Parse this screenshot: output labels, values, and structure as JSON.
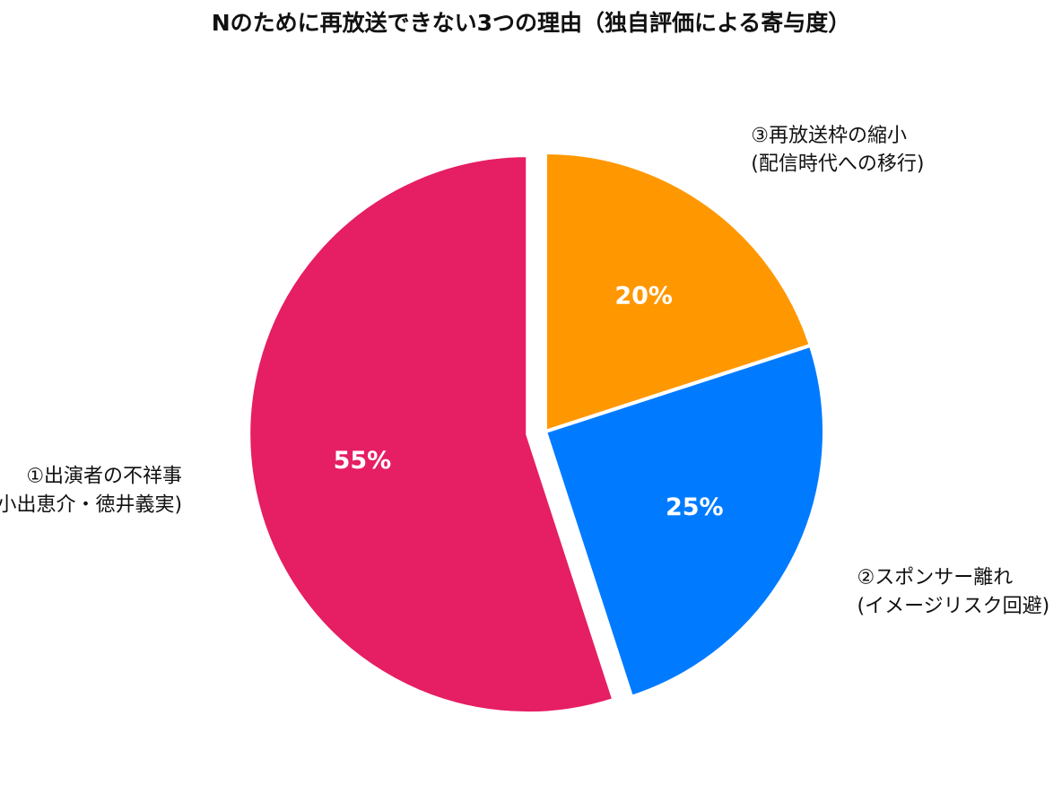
{
  "chart_data": {
    "type": "pie",
    "title": "Nのために再放送できない3つの理由（独自評価による寄与度）",
    "slices": [
      {
        "label_line1": "①出演者の不祥事",
        "label_line2": "(小出恵介・徳井義実)",
        "value": 55,
        "value_label": "55%",
        "color": "#E61E63",
        "exploded": true
      },
      {
        "label_line1": "②スポンサー離れ",
        "label_line2": "(イメージリスク回避)",
        "value": 25,
        "value_label": "25%",
        "color": "#007BFF",
        "exploded": false
      },
      {
        "label_line1": "③再放送枠の縮小",
        "label_line2": "(配信時代への移行)",
        "value": 20,
        "value_label": "20%",
        "color": "#FF9800",
        "exploded": false
      }
    ],
    "start_angle": "top",
    "direction": "counterclockwise",
    "legend": "none"
  }
}
